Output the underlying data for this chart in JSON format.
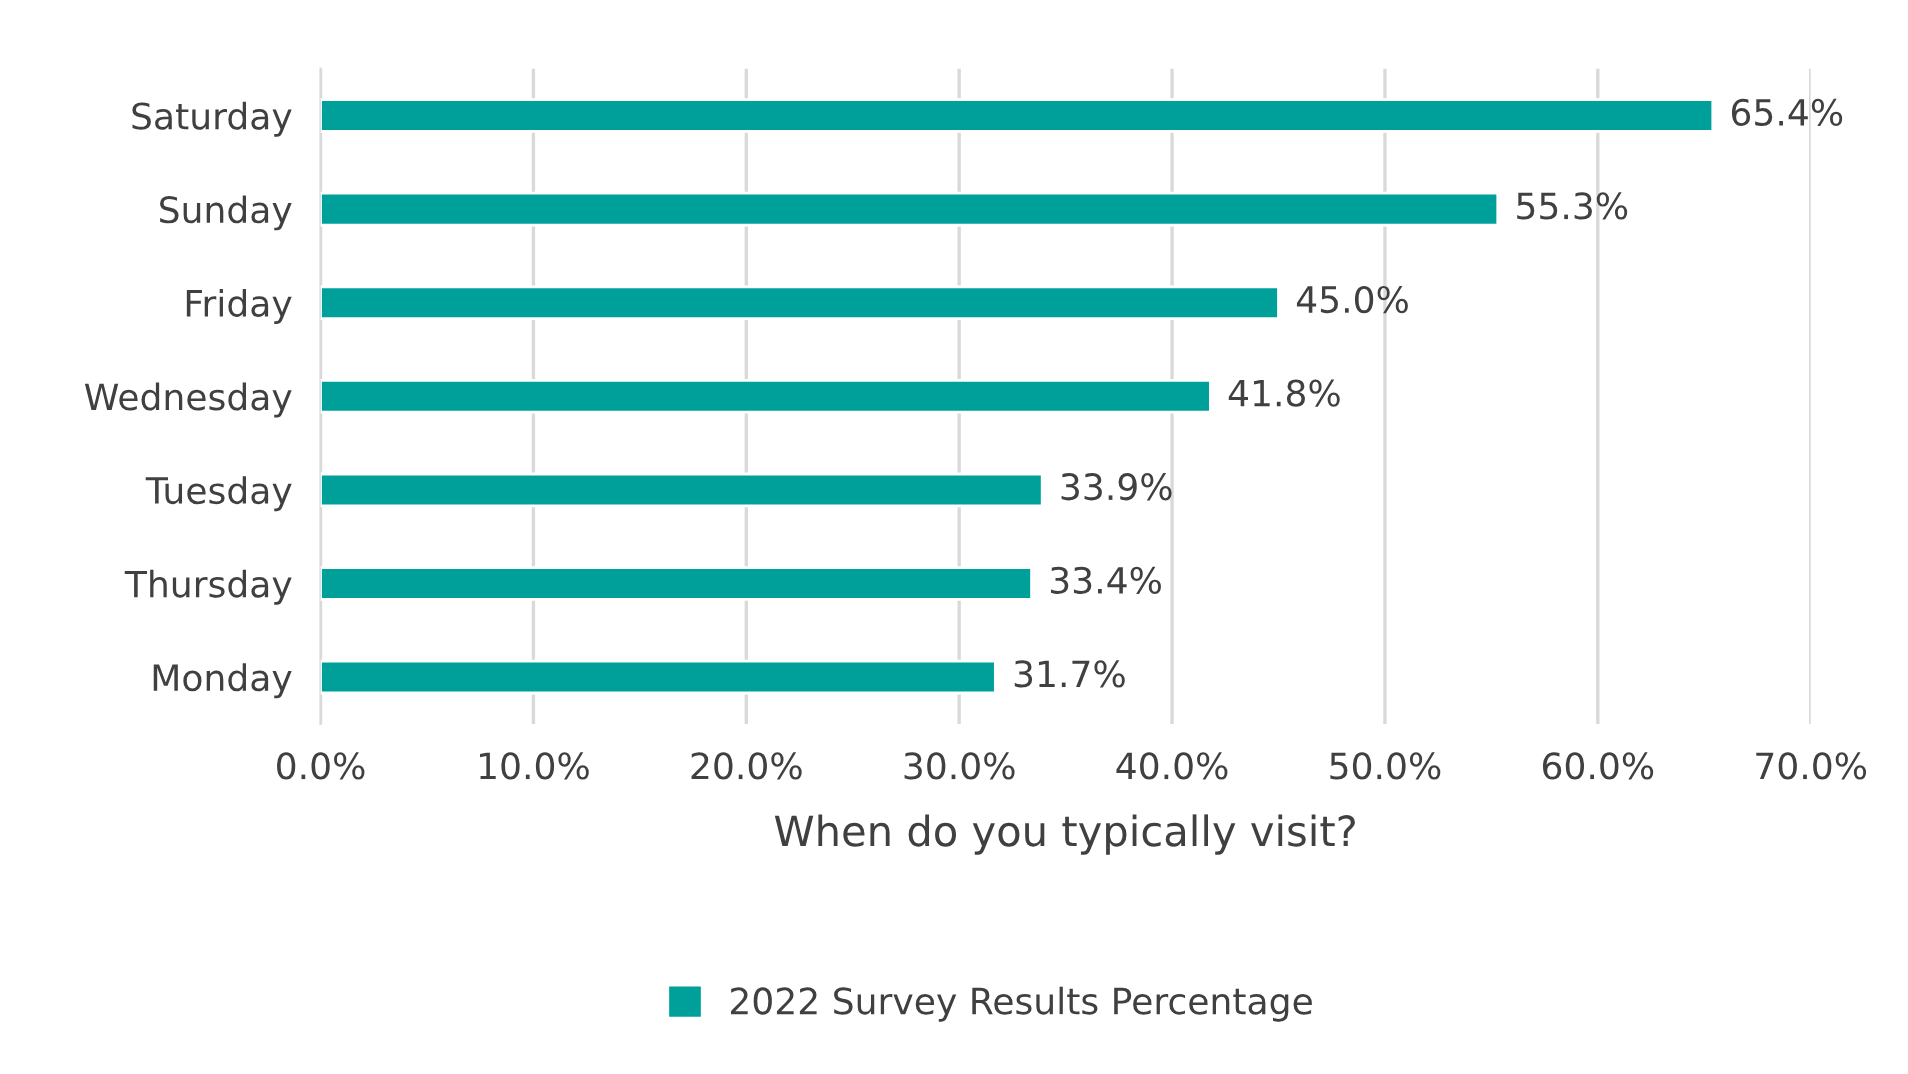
{
  "chart_data": {
    "type": "bar",
    "orientation": "horizontal",
    "xlabel": "When do you typically visit?",
    "categories": [
      "Saturday",
      "Sunday",
      "Friday",
      "Wednesday",
      "Tuesday",
      "Thursday",
      "Monday"
    ],
    "series": [
      {
        "name": "2022 Survey Results Percentage",
        "color": "#00a09a",
        "values": [
          65.4,
          55.3,
          45.0,
          41.8,
          33.9,
          33.4,
          31.7
        ],
        "value_labels": [
          "65.4%",
          "55.3%",
          "45.0%",
          "41.8%",
          "33.9%",
          "33.4%",
          "31.7%"
        ]
      }
    ],
    "xlim": [
      0,
      70
    ],
    "xticks": [
      {
        "value": 0,
        "label": "0.0%"
      },
      {
        "value": 10,
        "label": "10.0%"
      },
      {
        "value": 20,
        "label": "20.0%"
      },
      {
        "value": 30,
        "label": "30.0%"
      },
      {
        "value": 40,
        "label": "40.0%"
      },
      {
        "value": 50,
        "label": "50.0%"
      },
      {
        "value": 60,
        "label": "60.0%"
      },
      {
        "value": 70,
        "label": "70.0%"
      }
    ],
    "grid": "x",
    "legend": "bottom"
  }
}
